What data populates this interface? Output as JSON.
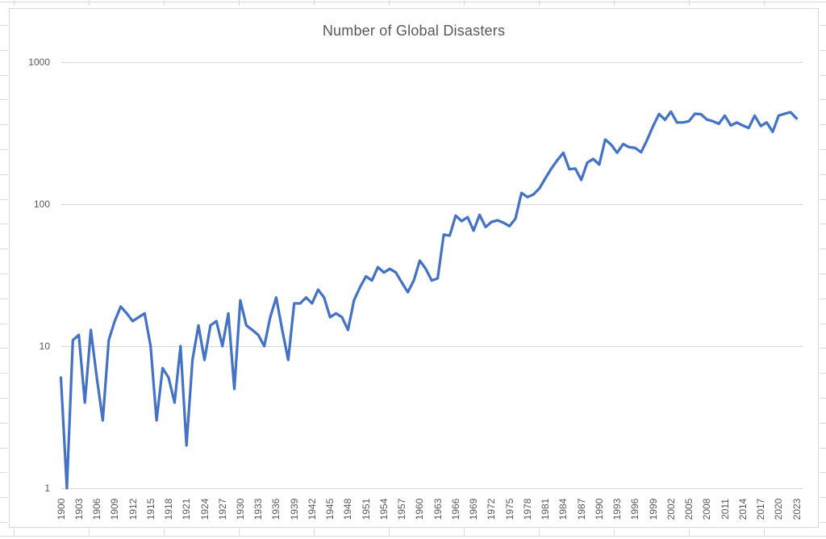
{
  "chart": {
    "title_color": "#595959",
    "axis_text_color": "#595959",
    "gridline_color": "#d9d9d9",
    "worksheet_gridline_color": "#d9d9d9",
    "line_color": "#4472C4",
    "background_color": "#ffffff"
  },
  "chart_data": {
    "type": "line",
    "title": "Number of Global Disasters",
    "xlabel": "",
    "ylabel": "",
    "y_scale": "log10",
    "ylim": [
      1,
      1000
    ],
    "y_ticks": [
      1000,
      100,
      10,
      1
    ],
    "x_range": [
      1900,
      2023
    ],
    "x_tick_labels": [
      1900,
      1903,
      1906,
      1909,
      1912,
      1915,
      1918,
      1921,
      1924,
      1927,
      1930,
      1933,
      1936,
      1939,
      1942,
      1945,
      1948,
      1951,
      1954,
      1957,
      1960,
      1963,
      1966,
      1969,
      1972,
      1975,
      1978,
      1981,
      1984,
      1987,
      1990,
      1993,
      1996,
      1999,
      2002,
      2005,
      2008,
      2011,
      2014,
      2017,
      2020,
      2023
    ],
    "grid": "horizontal",
    "legend": "none",
    "series": [
      {
        "name": "Number of Global Disasters",
        "color": "#4472C4",
        "x": [
          1900,
          1901,
          1902,
          1903,
          1904,
          1905,
          1906,
          1907,
          1908,
          1909,
          1910,
          1911,
          1912,
          1913,
          1914,
          1915,
          1916,
          1917,
          1918,
          1919,
          1920,
          1921,
          1922,
          1923,
          1924,
          1925,
          1926,
          1927,
          1928,
          1929,
          1930,
          1931,
          1932,
          1933,
          1934,
          1935,
          1936,
          1937,
          1938,
          1939,
          1940,
          1941,
          1942,
          1943,
          1944,
          1945,
          1946,
          1947,
          1948,
          1949,
          1950,
          1951,
          1952,
          1953,
          1954,
          1955,
          1956,
          1957,
          1958,
          1959,
          1960,
          1961,
          1962,
          1963,
          1964,
          1965,
          1966,
          1967,
          1968,
          1969,
          1970,
          1971,
          1972,
          1973,
          1974,
          1975,
          1976,
          1977,
          1978,
          1979,
          1980,
          1981,
          1982,
          1983,
          1984,
          1985,
          1986,
          1987,
          1988,
          1989,
          1990,
          1991,
          1992,
          1993,
          1994,
          1995,
          1996,
          1997,
          1998,
          1999,
          2000,
          2001,
          2002,
          2003,
          2004,
          2005,
          2006,
          2007,
          2008,
          2009,
          2010,
          2011,
          2012,
          2013,
          2014,
          2015,
          2016,
          2017,
          2018,
          2019,
          2020,
          2021,
          2022,
          2023
        ],
        "values": [
          6,
          1,
          11,
          12,
          4,
          13,
          6,
          3,
          11,
          15,
          19,
          17,
          15,
          16,
          17,
          10,
          3,
          7,
          6,
          4,
          10,
          2,
          8,
          14,
          8,
          14,
          15,
          10,
          17,
          5,
          21,
          14,
          13,
          12,
          10,
          16,
          22,
          13,
          8,
          20,
          20,
          22,
          20,
          25,
          22,
          16,
          17,
          16,
          13,
          21,
          26,
          31,
          29,
          36,
          33,
          35,
          33,
          28,
          24,
          29,
          40,
          35,
          29,
          30,
          61,
          60,
          83,
          76,
          81,
          65,
          84,
          69,
          75,
          77,
          74,
          70,
          79,
          120,
          112,
          117,
          129,
          152,
          178,
          204,
          230,
          176,
          178,
          148,
          196,
          208,
          190,
          285,
          262,
          230,
          265,
          252,
          249,
          232,
          283,
          354,
          431,
          393,
          448,
          376,
          376,
          384,
          433,
          430,
          394,
          384,
          368,
          420,
          358,
          376,
          358,
          344,
          420,
          355,
          376,
          323,
          420,
          433,
          444,
          402
        ]
      }
    ]
  }
}
